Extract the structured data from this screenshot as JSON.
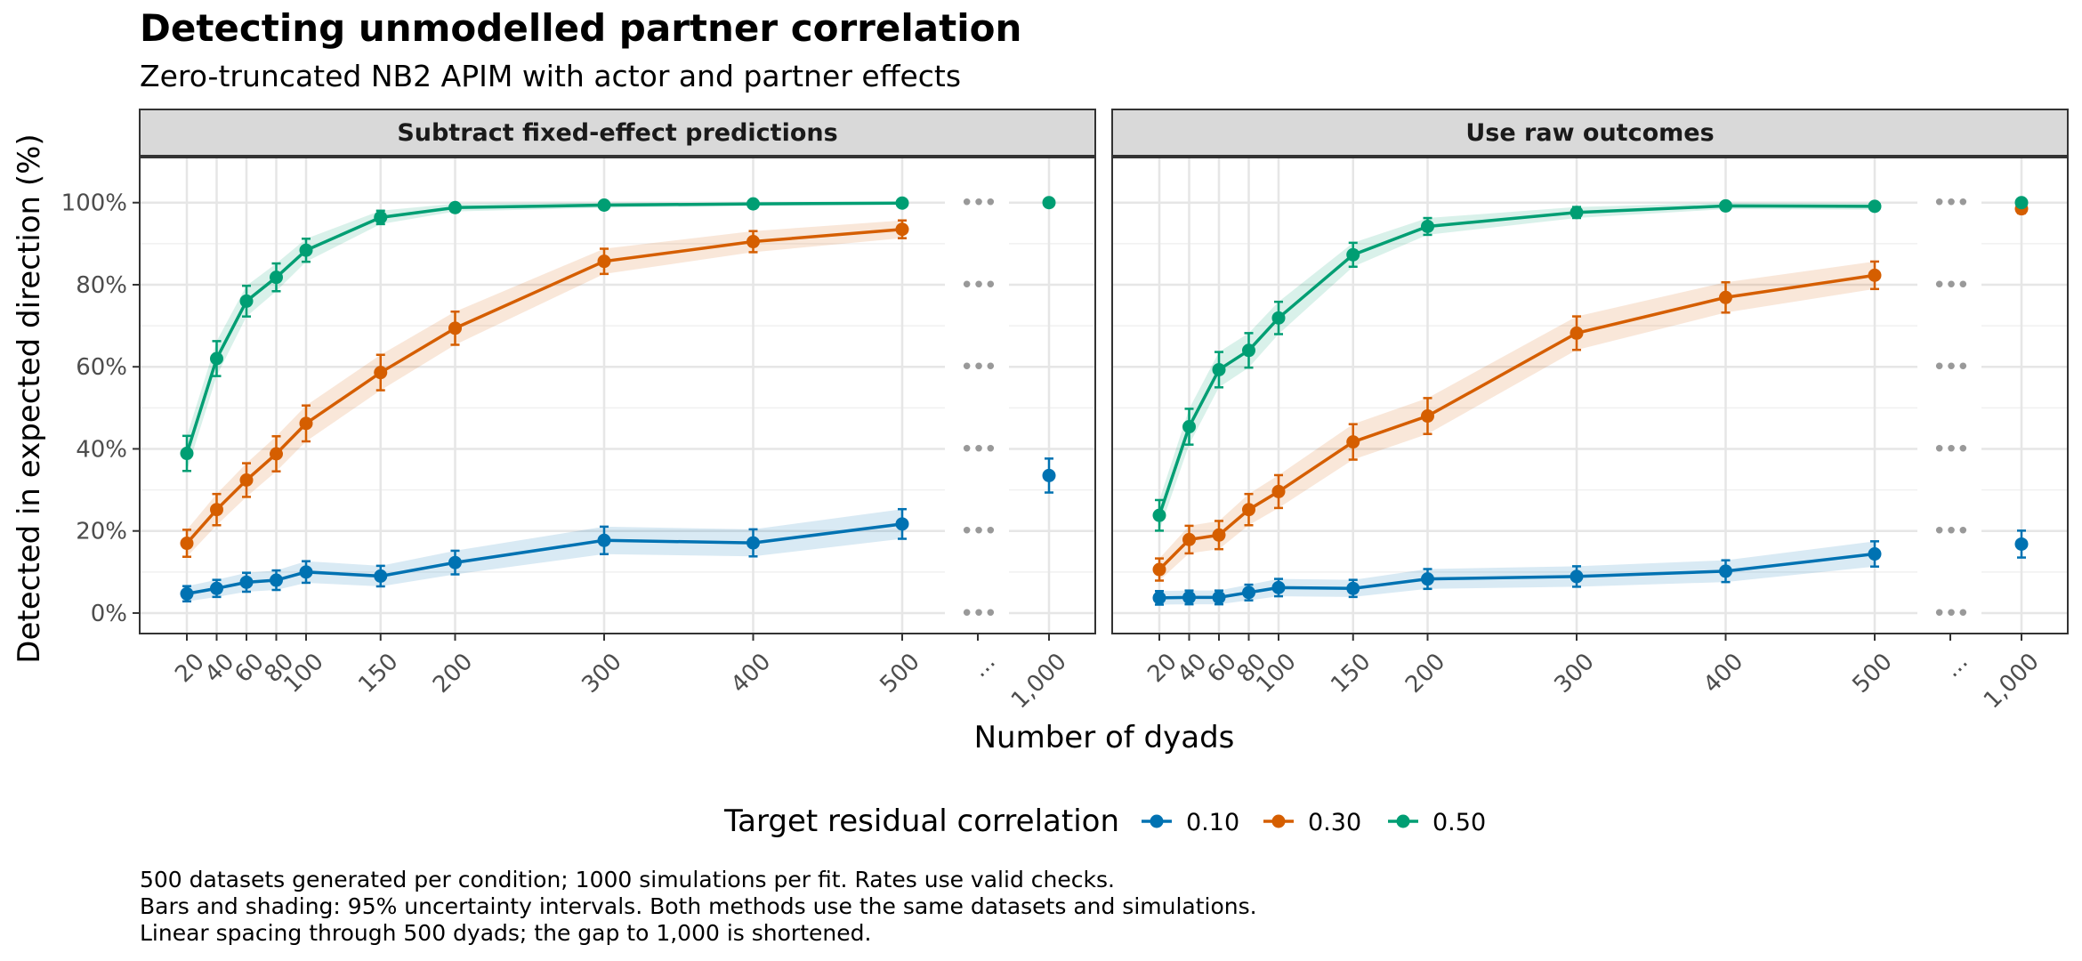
{
  "chart_data": {
    "type": "line",
    "title": "Detecting unmodelled partner correlation",
    "subtitle": "Zero-truncated NB2 APIM with actor and partner effects",
    "xlabel": "Number of dyads",
    "ylabel": "Detected in expected direction (%)",
    "x_ticks": [
      "20",
      "40",
      "60",
      "80",
      "100",
      "150",
      "200",
      "300",
      "400",
      "500",
      "...",
      "1,000"
    ],
    "y_ticks": [
      "0%",
      "20%",
      "40%",
      "60%",
      "80%",
      "100%"
    ],
    "ylim": [
      -5,
      111
    ],
    "gap_marker": "•••",
    "legend_title": "Target residual correlation",
    "legend_position": "bottom",
    "caption": [
      "500 datasets generated per condition; 1000 simulations per fit. Rates use valid checks.",
      "Bars and shading: 95% uncertainty intervals. Both methods use the same datasets and simulations.",
      "Linear spacing through 500 dyads; the gap to 1,000 is shortened."
    ],
    "colors": {
      "0.10": "#0072B2",
      "0.30": "#D55E00",
      "0.50": "#009E73"
    },
    "x": [
      20,
      40,
      60,
      80,
      100,
      150,
      200,
      300,
      400,
      500
    ],
    "panels": [
      {
        "title": "Subtract fixed-effect predictions",
        "series": [
          {
            "name": "0.10",
            "values": [
              4.7,
              6.0,
              7.5,
              8.0,
              10.0,
              9.0,
              12.3,
              17.7,
              17.1,
              21.7
            ],
            "x1000": 33.5
          },
          {
            "name": "0.30",
            "values": [
              17.0,
              25.2,
              32.4,
              38.8,
              46.2,
              58.6,
              69.4,
              85.7,
              90.5,
              93.5
            ],
            "x1000": null
          },
          {
            "name": "0.50",
            "values": [
              38.9,
              62.0,
              76.0,
              81.8,
              88.4,
              96.4,
              98.8,
              99.4,
              99.7,
              99.9
            ],
            "x1000": 100.0
          }
        ]
      },
      {
        "title": "Use raw outcomes",
        "series": [
          {
            "name": "0.10",
            "values": [
              3.7,
              3.8,
              3.8,
              5.0,
              6.2,
              6.0,
              8.3,
              8.9,
              10.2,
              14.4
            ],
            "x1000": 16.8
          },
          {
            "name": "0.30",
            "values": [
              10.6,
              17.9,
              19.0,
              25.2,
              29.6,
              41.7,
              48.0,
              68.2,
              76.9,
              82.3
            ],
            "x1000": 98.5
          },
          {
            "name": "0.50",
            "values": [
              23.8,
              45.4,
              59.3,
              64.0,
              71.9,
              87.3,
              94.2,
              97.6,
              99.2,
              99.1
            ],
            "x1000": 100.0
          }
        ]
      }
    ]
  }
}
